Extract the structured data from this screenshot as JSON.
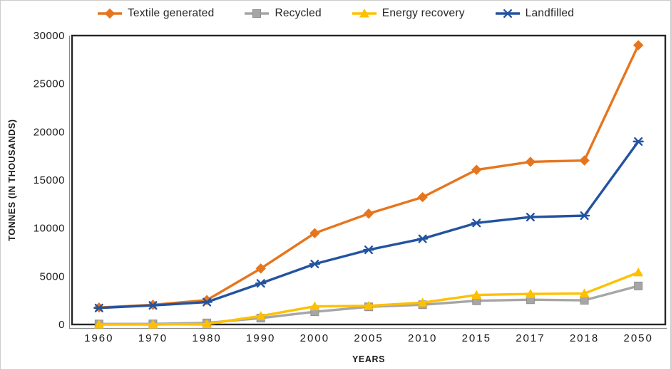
{
  "chart_data": {
    "type": "line",
    "title": "",
    "xlabel": "YEARS",
    "ylabel": "TONNES (IN THOUSANDS)",
    "categories": [
      "1960",
      "1970",
      "1980",
      "1990",
      "2000",
      "2005",
      "2010",
      "2015",
      "2017",
      "2018",
      "2050"
    ],
    "ylim": [
      0,
      30000
    ],
    "yticks": [
      0,
      5000,
      10000,
      15000,
      20000,
      25000,
      30000
    ],
    "grid": false,
    "legend_position": "top",
    "series": [
      {
        "name": "Textile generated",
        "marker": "diamond",
        "color": "#E6751D",
        "values": [
          1760,
          2040,
          2530,
          5810,
          9480,
          11510,
          13220,
          16060,
          16890,
          17030,
          29000
        ]
      },
      {
        "name": "Recycled",
        "marker": "square",
        "color": "#A6A6A6",
        "values": [
          50,
          60,
          160,
          660,
          1320,
          1830,
          2050,
          2460,
          2570,
          2510,
          4000
        ]
      },
      {
        "name": "Energy recovery",
        "marker": "triangle",
        "color": "#FFC000",
        "values": [
          0,
          0,
          50,
          880,
          1880,
          1930,
          2270,
          3060,
          3170,
          3220,
          5400
        ]
      },
      {
        "name": "Landfilled",
        "marker": "asterisk",
        "color": "#2353A0",
        "values": [
          1710,
          1980,
          2320,
          4270,
          6280,
          7750,
          8900,
          10540,
          11150,
          11300,
          19000
        ]
      }
    ]
  },
  "style": {
    "plot_border_color": "#262626",
    "text_color": "#1a1a1a",
    "background": "#ffffff"
  }
}
